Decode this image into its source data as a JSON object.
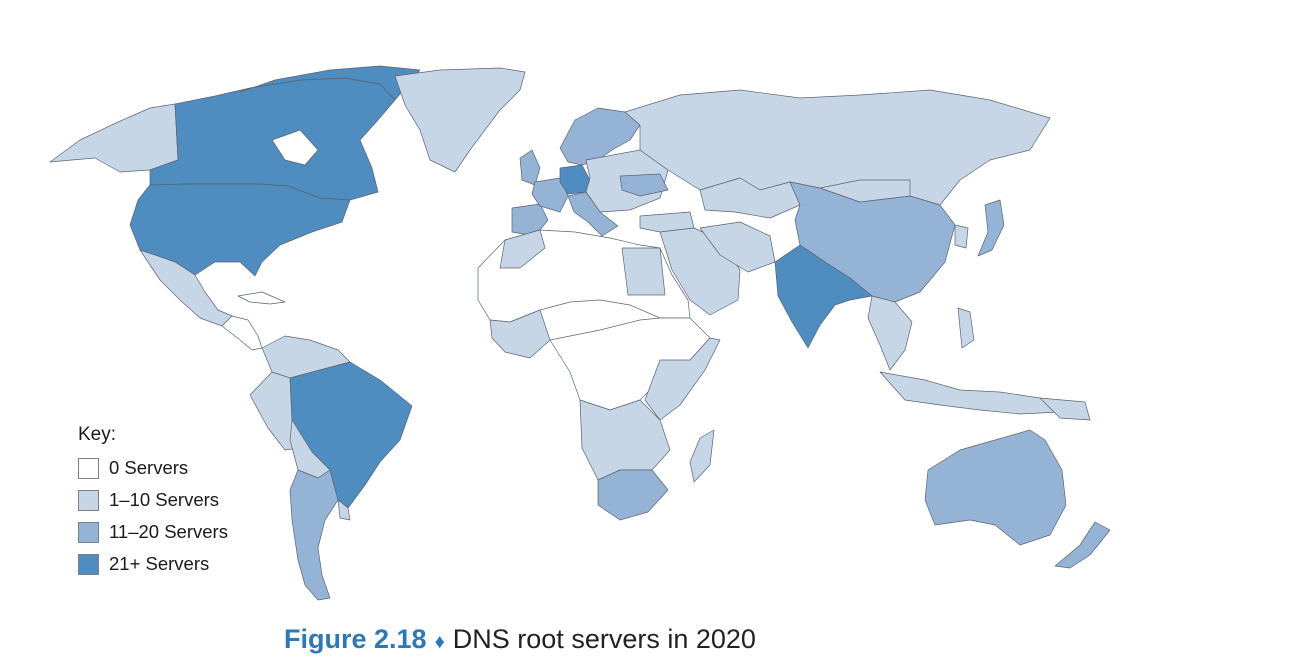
{
  "colors": {
    "zero": "#ffffff",
    "low": "#c7d6e7",
    "mid": "#95b3d4",
    "high": "#4f8cbf",
    "border": "#5a6472",
    "caption_accent": "#2f78b3"
  },
  "legend": {
    "title": "Key:",
    "items": [
      {
        "label": "0 Servers",
        "level": "zero"
      },
      {
        "label": "1–10 Servers",
        "level": "low"
      },
      {
        "label": "11–20 Servers",
        "level": "mid"
      },
      {
        "label": "21+ Servers",
        "level": "high"
      }
    ]
  },
  "caption": {
    "figure": "Figure 2.18",
    "separator": "♦",
    "text": "DNS root servers in 2020"
  }
}
